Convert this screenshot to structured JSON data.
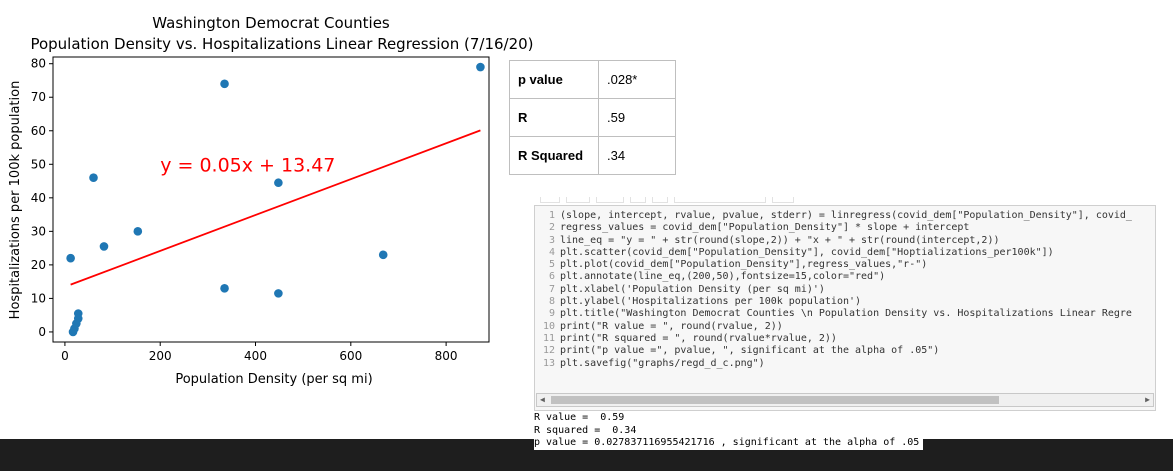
{
  "chart_data": {
    "type": "scatter",
    "title": "Washington Democrat Counties",
    "subtitle": "Population Density vs. Hospitalizations Linear Regression (7/16/20)",
    "xlabel": "Population Density (per sq mi)",
    "ylabel": "Hospitalizations per 100k population",
    "xlim": [
      -25,
      890
    ],
    "ylim": [
      -3,
      82
    ],
    "xticks": [
      0,
      200,
      400,
      600,
      800
    ],
    "yticks": [
      0,
      10,
      20,
      30,
      40,
      50,
      60,
      70,
      80
    ],
    "points": [
      {
        "x": 872,
        "y": 79
      },
      {
        "x": 335,
        "y": 74
      },
      {
        "x": 60,
        "y": 46
      },
      {
        "x": 448,
        "y": 44.5
      },
      {
        "x": 153,
        "y": 30
      },
      {
        "x": 82,
        "y": 25.5
      },
      {
        "x": 12,
        "y": 22
      },
      {
        "x": 668,
        "y": 23
      },
      {
        "x": 335,
        "y": 13
      },
      {
        "x": 448,
        "y": 11.5
      },
      {
        "x": 28,
        "y": 5.5
      },
      {
        "x": 28,
        "y": 4
      },
      {
        "x": 24,
        "y": 2.5
      },
      {
        "x": 20,
        "y": 1
      },
      {
        "x": 17,
        "y": 0
      }
    ],
    "regression": {
      "slope": 0.0535,
      "intercept": 13.47,
      "x_range": [
        12,
        872
      ],
      "color": "#ff0000"
    },
    "annotation": {
      "text": "y = 0.05x + 13.47",
      "x": 200,
      "y": 50,
      "color": "#ff0000"
    },
    "point_color": "#1f77b4"
  },
  "stats_table": [
    {
      "label": "p value",
      "value": ".028*"
    },
    {
      "label": "R",
      "value": ".59"
    },
    {
      "label": "R Squared",
      "value": ".34"
    }
  ],
  "code": [
    {
      "n": "1",
      "text": "(slope, intercept, rvalue, pvalue, stderr) = linregress(covid_dem[\"Population_Density\"], covid_"
    },
    {
      "n": "2",
      "text": "regress_values = covid_dem[\"Population_Density\"] * slope + intercept"
    },
    {
      "n": "3",
      "text": "line_eq = \"y = \" + str(round(slope,2)) + \"x + \" + str(round(intercept,2))"
    },
    {
      "n": "4",
      "text": "plt.scatter(covid_dem[\"Population_Density\"], covid_dem[\"Hoptializations_per100k\"])"
    },
    {
      "n": "5",
      "text": "plt.plot(covid_dem[\"Population_Density\"],regress_values,\"r-\")"
    },
    {
      "n": "6",
      "text": "plt.annotate(line_eq,(200,50),fontsize=15,color=\"red\")"
    },
    {
      "n": "7",
      "text": "plt.xlabel('Population Density (per sq mi)')"
    },
    {
      "n": "8",
      "text": "plt.ylabel('Hospitalizations per 100k population')"
    },
    {
      "n": "9",
      "text": "plt.title(\"Washington Democrat Counties \\n Population Density vs. Hospitalizations Linear Regre"
    },
    {
      "n": "10",
      "text": "print(\"R value = \", round(rvalue, 2))"
    },
    {
      "n": "11",
      "text": "print(\"R squared = \", round(rvalue*rvalue, 2))"
    },
    {
      "n": "12",
      "text": "print(\"p value =\", pvalue, \", significant at the alpha of .05\")"
    },
    {
      "n": "13",
      "text": "plt.savefig(\"graphs/regd_d_c.png\")"
    }
  ],
  "output": [
    "R value =  0.59",
    "R squared =  0.34",
    "p value = 0.027837116955421716 , significant at the alpha of .05"
  ]
}
